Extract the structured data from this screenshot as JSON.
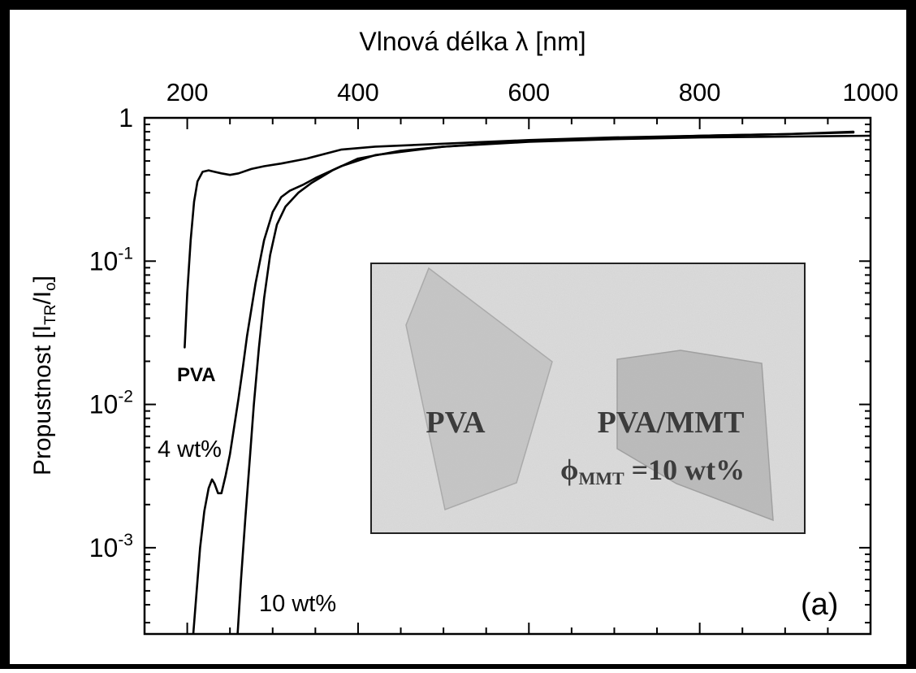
{
  "chart_data": {
    "type": "line",
    "xlabel": "Vlnová délka λ [nm]",
    "ylabel": "Propustnost [I_TR/I_o]",
    "ylabel_parts": {
      "main": "Propustnost [I",
      "sub1": "TR",
      "mid": "/I",
      "sub2": "o",
      "end": "]"
    },
    "xlim": [
      150,
      1000
    ],
    "ylim": [
      0.00025,
      1
    ],
    "yscale": "log",
    "x_ticks": [
      200,
      400,
      600,
      800,
      1000
    ],
    "y_ticks": [
      {
        "value": 1,
        "base": "1",
        "exp": ""
      },
      {
        "value": 0.1,
        "base": "10",
        "exp": "-1"
      },
      {
        "value": 0.01,
        "base": "10",
        "exp": "-2"
      },
      {
        "value": 0.001,
        "base": "10",
        "exp": "-3"
      }
    ],
    "series": [
      {
        "name": "PVA",
        "x": [
          197,
          200,
          204,
          208,
          212,
          218,
          225,
          232,
          240,
          250,
          260,
          275,
          290,
          310,
          340,
          380,
          420,
          500,
          600,
          700,
          800,
          900,
          980
        ],
        "y": [
          0.025,
          0.06,
          0.14,
          0.26,
          0.36,
          0.42,
          0.43,
          0.42,
          0.41,
          0.4,
          0.41,
          0.44,
          0.46,
          0.48,
          0.52,
          0.6,
          0.63,
          0.66,
          0.7,
          0.73,
          0.75,
          0.77,
          0.8
        ]
      },
      {
        "name": "4 wt%",
        "x": [
          207,
          211,
          215,
          220,
          225,
          229,
          232,
          236,
          240,
          245,
          250,
          255,
          260,
          265,
          270,
          280,
          290,
          300,
          310,
          320,
          335,
          350,
          380,
          420,
          500,
          600,
          700,
          800,
          900,
          980
        ],
        "y": [
          0.00025,
          0.0005,
          0.001,
          0.0018,
          0.0026,
          0.003,
          0.0028,
          0.0024,
          0.0024,
          0.0032,
          0.0045,
          0.007,
          0.011,
          0.018,
          0.03,
          0.07,
          0.14,
          0.22,
          0.28,
          0.31,
          0.34,
          0.38,
          0.46,
          0.55,
          0.63,
          0.69,
          0.72,
          0.75,
          0.77,
          0.79
        ]
      },
      {
        "name": "10 wt%",
        "x": [
          259,
          263,
          268,
          273,
          278,
          284,
          290,
          297,
          305,
          315,
          330,
          345,
          370,
          400,
          450,
          500,
          600,
          700,
          800,
          900,
          1000
        ],
        "y": [
          0.00025,
          0.0006,
          0.0016,
          0.004,
          0.01,
          0.025,
          0.055,
          0.11,
          0.18,
          0.24,
          0.3,
          0.35,
          0.43,
          0.52,
          0.59,
          0.63,
          0.68,
          0.71,
          0.73,
          0.74,
          0.75
        ]
      }
    ],
    "annotations": {
      "pva": "PVA",
      "wt4": "4 wt%",
      "wt10": "10 wt%",
      "panel": "(a)"
    },
    "inset": {
      "label_left": "PVA",
      "label_right": "PVA/MMT",
      "phi": "ϕ",
      "phi_sub": "MMT",
      "phi_value": " =10 wt%"
    },
    "grid": false,
    "legend": "none"
  }
}
